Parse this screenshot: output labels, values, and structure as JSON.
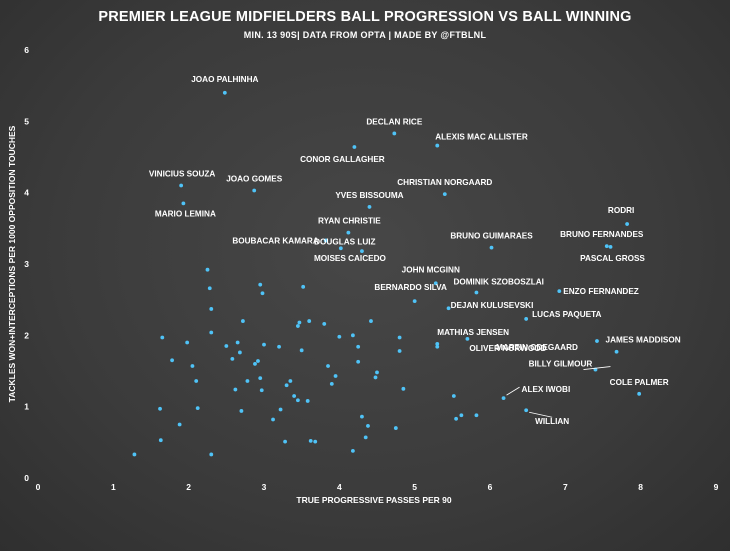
{
  "chart_data": {
    "type": "scatter",
    "title": "PREMIER LEAGUE MIDFIELDERS BALL PROGRESSION VS BALL WINNING",
    "subtitle": "MIN. 13 90S| DATA FROM OPTA | MADE BY @FTBLNL",
    "xlabel": "TRUE PROGRESSIVE PASSES PER 90",
    "ylabel": "TACKLES WON+INTERCEPTIONS PER 1000 OPPOSITION TOUCHES",
    "xlim": [
      0,
      9
    ],
    "ylim": [
      0,
      6
    ],
    "xticks": [
      "0",
      "1",
      "2",
      "3",
      "4",
      "5",
      "6",
      "7",
      "8",
      "9"
    ],
    "yticks": [
      "0",
      "1",
      "2",
      "3",
      "4",
      "5",
      "6"
    ],
    "grid": false,
    "point_color": "#4fc3f7",
    "labeled_points": [
      {
        "name": "JOAO PALHINHA",
        "x": 2.48,
        "y": 5.4
      },
      {
        "name": "DECLAN RICE",
        "x": 4.73,
        "y": 4.83
      },
      {
        "name": "ALEXIS MAC ALLISTER",
        "x": 5.3,
        "y": 4.66
      },
      {
        "name": "CONOR GALLAGHER",
        "x": 4.2,
        "y": 4.64
      },
      {
        "name": "VINICIUS SOUZA",
        "x": 1.9,
        "y": 4.1
      },
      {
        "name": "JOAO GOMES",
        "x": 2.87,
        "y": 4.03
      },
      {
        "name": "CHRISTIAN NORGAARD",
        "x": 5.4,
        "y": 3.98
      },
      {
        "name": "YVES BISSOUMA",
        "x": 4.4,
        "y": 3.8
      },
      {
        "name": "MARIO LEMINA",
        "x": 1.93,
        "y": 3.85
      },
      {
        "name": "RODRI",
        "x": 7.82,
        "y": 3.56
      },
      {
        "name": "RYAN CHRISTIE",
        "x": 4.12,
        "y": 3.44
      },
      {
        "name": "BOUBACAR KAMARA",
        "x": 3.82,
        "y": 3.33
      },
      {
        "name": "BRUNO GUIMARAES",
        "x": 6.02,
        "y": 3.23
      },
      {
        "name": "BRUNO FERNANDES",
        "x": 7.55,
        "y": 3.25
      },
      {
        "name": "DOUGLAS LUIZ",
        "x": 4.02,
        "y": 3.22
      },
      {
        "name": "MOISES CAICEDO",
        "x": 4.3,
        "y": 3.18
      },
      {
        "name": "PASCAL GROSS",
        "x": 7.6,
        "y": 3.24
      },
      {
        "name": "JOHN MCGINN",
        "x": 5.28,
        "y": 2.73
      },
      {
        "name": "DOMINIK SZOBOSZLAI",
        "x": 5.82,
        "y": 2.6
      },
      {
        "name": "ENZO FERNANDEZ",
        "x": 6.92,
        "y": 2.62
      },
      {
        "name": "BERNARDO SILVA",
        "x": 5.0,
        "y": 2.48
      },
      {
        "name": "DEJAN KULUSEVSKI",
        "x": 5.45,
        "y": 2.38
      },
      {
        "name": "LUCAS PAQUETA",
        "x": 6.48,
        "y": 2.23
      },
      {
        "name": "MATHIAS JENSEN",
        "x": 5.3,
        "y": 1.88
      },
      {
        "name": "MARTIN ODEGAARD",
        "x": 7.42,
        "y": 1.92
      },
      {
        "name": "OLIVER NORWOOD",
        "x": 5.7,
        "y": 1.95
      },
      {
        "name": "JAMES MADDISON",
        "x": 7.68,
        "y": 1.77
      },
      {
        "name": "BILLY GILMOUR",
        "x": 7.4,
        "y": 1.52
      },
      {
        "name": "COLE PALMER",
        "x": 7.98,
        "y": 1.18
      },
      {
        "name": "ALEX IWOBI",
        "x": 6.18,
        "y": 1.12
      },
      {
        "name": "WILLIAN",
        "x": 6.48,
        "y": 0.95
      }
    ],
    "other_points": [
      [
        1.28,
        0.33
      ],
      [
        1.62,
        0.97
      ],
      [
        1.63,
        0.53
      ],
      [
        1.65,
        1.97
      ],
      [
        1.78,
        1.65
      ],
      [
        1.88,
        0.75
      ],
      [
        1.98,
        1.9
      ],
      [
        2.05,
        1.57
      ],
      [
        2.1,
        1.36
      ],
      [
        2.12,
        0.98
      ],
      [
        2.25,
        2.92
      ],
      [
        2.28,
        2.66
      ],
      [
        2.3,
        2.37
      ],
      [
        2.3,
        2.04
      ],
      [
        2.3,
        0.33
      ],
      [
        2.5,
        1.85
      ],
      [
        2.58,
        1.67
      ],
      [
        2.62,
        1.24
      ],
      [
        2.65,
        1.9
      ],
      [
        2.68,
        1.76
      ],
      [
        2.7,
        0.94
      ],
      [
        2.72,
        2.2
      ],
      [
        2.78,
        1.36
      ],
      [
        2.88,
        1.6
      ],
      [
        2.92,
        1.64
      ],
      [
        2.95,
        2.71
      ],
      [
        2.95,
        1.4
      ],
      [
        2.97,
        1.23
      ],
      [
        2.98,
        2.59
      ],
      [
        3.0,
        1.87
      ],
      [
        3.12,
        0.82
      ],
      [
        3.2,
        1.84
      ],
      [
        3.22,
        0.96
      ],
      [
        3.28,
        0.51
      ],
      [
        3.3,
        1.3
      ],
      [
        3.35,
        1.36
      ],
      [
        3.4,
        1.15
      ],
      [
        3.45,
        1.09
      ],
      [
        3.45,
        2.13
      ],
      [
        3.47,
        2.18
      ],
      [
        3.5,
        1.79
      ],
      [
        3.52,
        2.68
      ],
      [
        3.58,
        1.08
      ],
      [
        3.6,
        2.2
      ],
      [
        3.62,
        0.52
      ],
      [
        3.68,
        0.51
      ],
      [
        3.8,
        2.16
      ],
      [
        3.85,
        1.57
      ],
      [
        3.9,
        1.32
      ],
      [
        3.95,
        1.43
      ],
      [
        4.0,
        1.98
      ],
      [
        4.18,
        2.0
      ],
      [
        4.18,
        0.38
      ],
      [
        4.25,
        1.84
      ],
      [
        4.25,
        1.63
      ],
      [
        4.3,
        0.86
      ],
      [
        4.35,
        0.57
      ],
      [
        4.38,
        0.73
      ],
      [
        4.42,
        2.2
      ],
      [
        4.48,
        1.41
      ],
      [
        4.5,
        1.48
      ],
      [
        4.75,
        0.7
      ],
      [
        4.8,
        1.78
      ],
      [
        4.8,
        1.97
      ],
      [
        4.85,
        1.25
      ],
      [
        5.3,
        1.84
      ],
      [
        5.52,
        1.15
      ],
      [
        5.55,
        0.83
      ],
      [
        5.62,
        0.88
      ],
      [
        5.82,
        0.88
      ]
    ]
  }
}
